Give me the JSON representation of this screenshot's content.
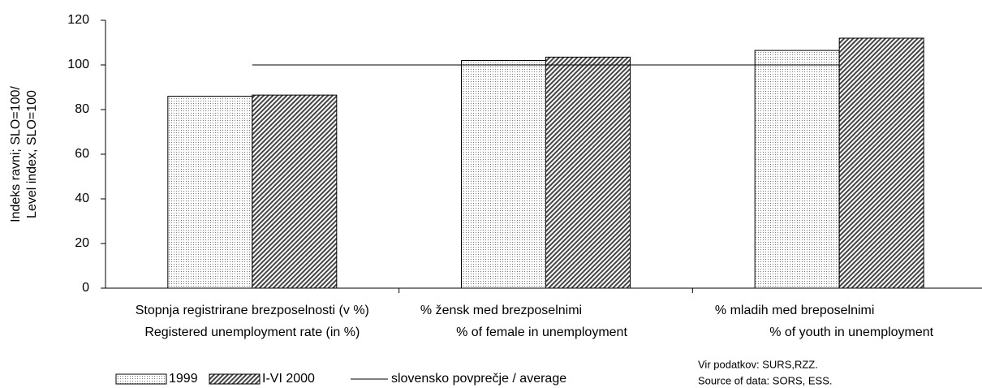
{
  "chart_data": {
    "type": "bar",
    "y_label": [
      "Indeks ravni; SLO=100/",
      "Level index, SLO=100"
    ],
    "categories": [
      [
        "Stopnja registrirane brezposelnosti (v %)",
        "Registered unemployment rate (in %)"
      ],
      [
        "% žensk med  brezposelnimi",
        "% of female in unemployment"
      ],
      [
        "% mladih med breposelnimi",
        "% of youth in unemployment"
      ]
    ],
    "series": [
      {
        "name": "1999",
        "color": "#000000",
        "pattern": "dots",
        "values": [
          86,
          102,
          106.5
        ]
      },
      {
        "name": "I-VI 2000",
        "color": "#000000",
        "pattern": "hatch",
        "values": [
          86.5,
          103.5,
          112
        ]
      }
    ],
    "reference": {
      "name": "slovensko povprečje / average",
      "value": 100,
      "color": "#000000"
    },
    "ylim": [
      0,
      120
    ],
    "yticks": [
      0,
      20,
      40,
      60,
      80,
      100,
      120
    ],
    "source": [
      "Vir podatkov: SURS,RZZ.",
      "Source of data: SORS, ESS."
    ]
  }
}
